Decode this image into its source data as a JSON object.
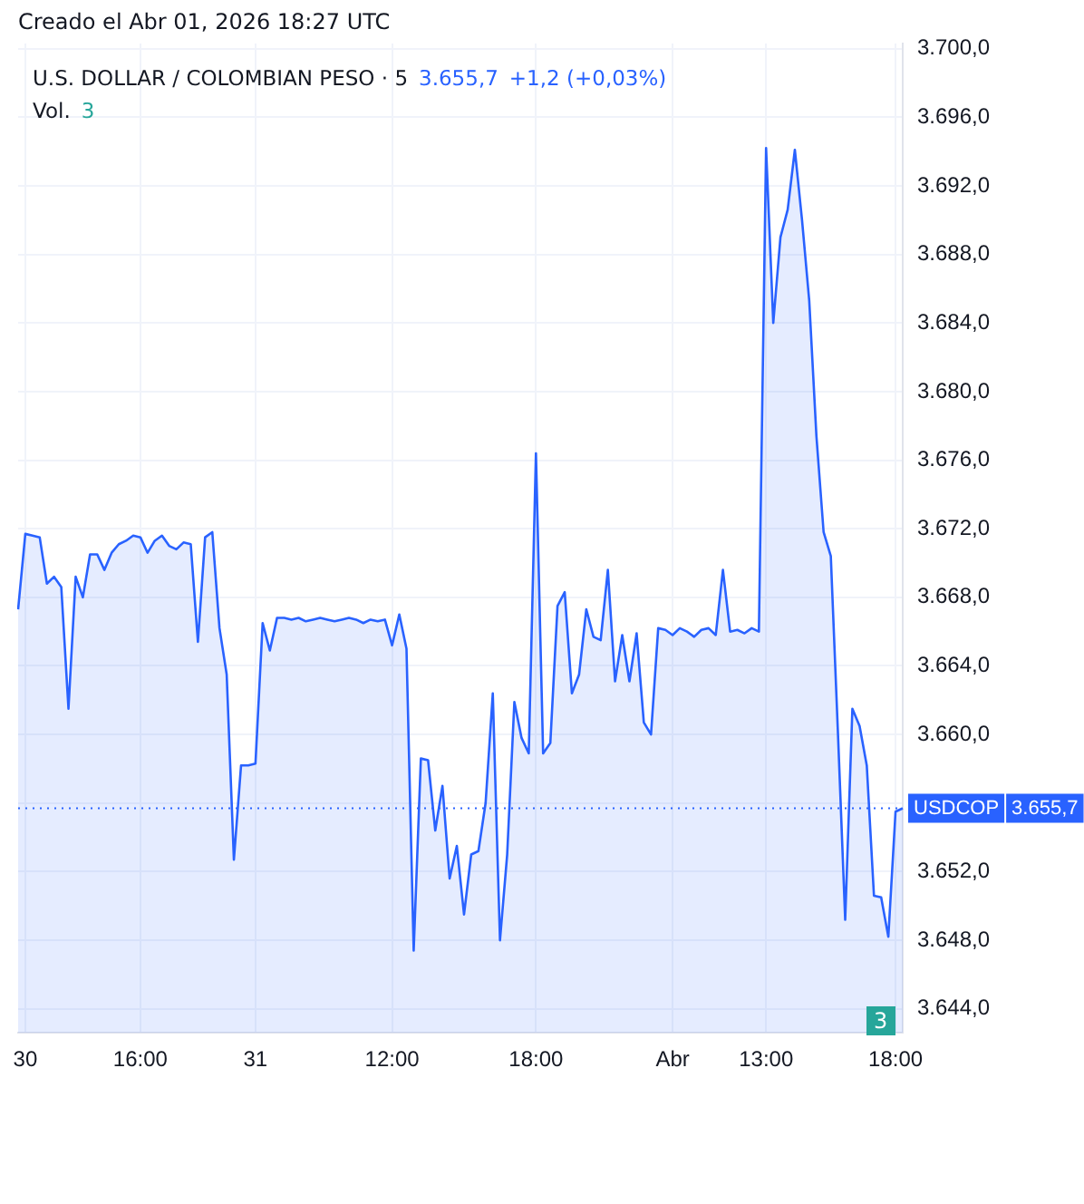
{
  "chart_data": {
    "type": "area",
    "title": "U.S. DOLLAR / COLOMBIAN PESO · 5",
    "annotations": [
      "Creado el Abr 01, 2026 18:27 UTC",
      "3.655,7",
      "+1,2 (+0,03%)",
      "Vol.",
      "3",
      "3"
    ],
    "categories": [
      null,
      "30",
      null,
      null,
      null,
      null,
      null,
      null,
      null,
      null,
      null,
      null,
      null,
      null,
      null,
      null,
      null,
      "16:00",
      null,
      null,
      null,
      null,
      null,
      null,
      null,
      null,
      null,
      null,
      null,
      null,
      null,
      null,
      null,
      "31",
      null,
      null,
      null,
      null,
      null,
      null,
      null,
      null,
      null,
      null,
      null,
      null,
      null,
      null,
      null,
      null,
      null,
      null,
      "12:00",
      null,
      null,
      null,
      null,
      null,
      null,
      null,
      null,
      null,
      null,
      null,
      null,
      null,
      null,
      null,
      null,
      null,
      null,
      null,
      "18:00",
      null,
      null,
      null,
      null,
      null,
      null,
      null,
      null,
      null,
      null,
      null,
      null,
      null,
      null,
      null,
      null,
      null,
      null,
      "Abr",
      null,
      null,
      null,
      null,
      null,
      null,
      null,
      null,
      null,
      null,
      null,
      null,
      "13:00",
      null,
      null,
      null,
      null,
      null,
      null,
      null,
      null,
      null,
      null,
      null,
      null,
      null,
      null,
      null,
      null,
      null,
      "18:00",
      null
    ],
    "series": [
      {
        "color": "#2962ff",
        "values": [
          3667.3,
          3671.7,
          3671.6,
          3671.5,
          3668.8,
          3669.2,
          3668.6,
          3661.5,
          3669.2,
          3668,
          3670.5,
          3670.5,
          3669.6,
          3670.6,
          3671.1,
          3671.3,
          3671.6,
          3671.5,
          3670.6,
          3671.3,
          3671.6,
          3671.0,
          3670.8,
          3671.2,
          3671.1,
          3665.4,
          3671.5,
          3671.8,
          3666.2,
          3663.5,
          3652.7,
          3658.2,
          3658.2,
          3658.3,
          3666.5,
          3664.9,
          3666.8,
          3666.8,
          3666.7,
          3666.8,
          3666.6,
          3666.7,
          3666.8,
          3666.7,
          3666.6,
          3666.7,
          3666.8,
          3666.7,
          3666.5,
          3666.7,
          3666.6,
          3666.7,
          3665.2,
          3667.0,
          3665.0,
          3647.4,
          3658.6,
          3658.5,
          3654.4,
          3657.0,
          3651.6,
          3653.5,
          3649.5,
          3653,
          3653.2,
          3656,
          3662.4,
          3648,
          3653,
          3661.9,
          3659.8,
          3658.9,
          3676.4,
          3658.9,
          3659.5,
          3667.5,
          3668.3,
          3662.4,
          3663.5,
          3667.3,
          3665.7,
          3665.5,
          3669.6,
          3663.1,
          3665.8,
          3663.1,
          3665.9,
          3660.7,
          3660,
          3666.2,
          3666.1,
          3665.8,
          3666.2,
          3666.0,
          3665.7,
          3666.1,
          3666.2,
          3665.8,
          3669.6,
          3666.0,
          3666.1,
          3665.9,
          3666.2,
          3666.0,
          3694.2,
          3684,
          3689,
          3690.6,
          3694.1,
          3690,
          3685.3,
          3677.4,
          3671.8,
          3670.4,
          3660,
          3649.2,
          3661.5,
          3660.5,
          3658.2,
          3650.6,
          3650.5,
          3648.2,
          3655.5,
          3655.7
        ]
      }
    ],
    "ylim": [
      3642.6,
      3700.3
    ],
    "yticks": [
      {
        "value": 3644,
        "label": "3.644,0"
      },
      {
        "value": 3648,
        "label": "3.648,0"
      },
      {
        "value": 3652,
        "label": "3.652,0"
      },
      {
        "value": 3656,
        "label": null
      },
      {
        "value": 3660,
        "label": "3.660,0"
      },
      {
        "value": 3664,
        "label": "3.664,0"
      },
      {
        "value": 3668,
        "label": "3.668,0"
      },
      {
        "value": 3672,
        "label": "3.672,0"
      },
      {
        "value": 3676,
        "label": "3.676,0"
      },
      {
        "value": 3680,
        "label": "3.680,0"
      },
      {
        "value": 3684,
        "label": "3.684,0"
      },
      {
        "value": 3688,
        "label": "3.688,0"
      },
      {
        "value": 3692,
        "label": "3.692,0"
      },
      {
        "value": 3696,
        "label": "3.696,0"
      },
      {
        "value": 3700,
        "label": "3.700,0"
      }
    ],
    "ref_lines": [
      {
        "axis": "y",
        "value": 3655.7,
        "label": "USDCOP",
        "color": "#2962ff",
        "line_style": "dotted"
      }
    ],
    "grid": true,
    "legend": false,
    "marker": "none"
  }
}
